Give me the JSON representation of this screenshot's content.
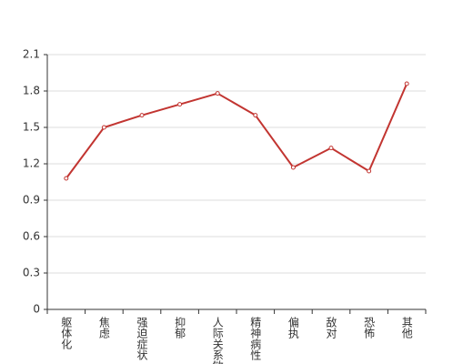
{
  "chart_data": {
    "type": "line",
    "categories": [
      "躯体化",
      "焦虑",
      "强迫症状",
      "抑郁",
      "人际关系敏感",
      "精神病性",
      "偏执",
      "敌对",
      "恐怖",
      "其他"
    ],
    "values": [
      1.08,
      1.5,
      1.6,
      1.69,
      1.78,
      1.6,
      1.17,
      1.33,
      1.14,
      1.86
    ],
    "color": "#c23531",
    "ylim": [
      0,
      2.1
    ],
    "yticks": [
      0,
      0.3,
      0.6,
      0.9,
      1.2,
      1.5,
      1.8,
      2.1
    ],
    "grid": true
  }
}
